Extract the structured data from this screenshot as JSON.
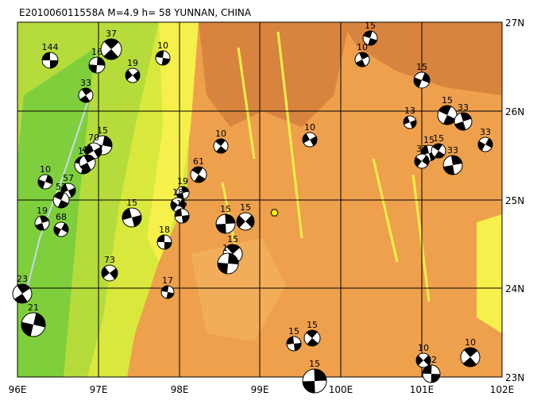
{
  "header": {
    "title": "E201006011558A  M=4.9  h= 58  YUNNAN, CHINA"
  },
  "x_labels": [
    "96E",
    "97E",
    "98E",
    "99E",
    "100E",
    "101E",
    "102E"
  ],
  "y_labels": [
    "27N",
    "26N",
    "25N",
    "24N",
    "23N"
  ],
  "events": [
    {
      "label": "144"
    },
    {
      "label": "37"
    },
    {
      "label": "16"
    },
    {
      "label": "19"
    },
    {
      "label": "10"
    },
    {
      "label": "33"
    },
    {
      "label": "15"
    },
    {
      "label": "70"
    },
    {
      "label": "16"
    },
    {
      "label": "48"
    },
    {
      "label": "10"
    },
    {
      "label": "57"
    },
    {
      "label": "57"
    },
    {
      "label": "19"
    },
    {
      "label": "68"
    },
    {
      "label": "15"
    },
    {
      "label": "61"
    },
    {
      "label": "19"
    },
    {
      "label": "18"
    },
    {
      "label": "15"
    },
    {
      "label": "10"
    },
    {
      "label": "15"
    },
    {
      "label": "15"
    },
    {
      "label": "18"
    },
    {
      "label": "15"
    },
    {
      "label": "14"
    },
    {
      "label": "73"
    },
    {
      "label": "17"
    },
    {
      "label": "23"
    },
    {
      "label": "21"
    },
    {
      "label": "10"
    },
    {
      "label": "15"
    },
    {
      "label": "10"
    },
    {
      "label": "15"
    },
    {
      "label": "13"
    },
    {
      "label": "15"
    },
    {
      "label": "33"
    },
    {
      "label": "33"
    },
    {
      "label": "15"
    },
    {
      "label": "15"
    },
    {
      "label": "33"
    },
    {
      "label": "33"
    },
    {
      "label": "15"
    },
    {
      "label": "15"
    },
    {
      "label": "15"
    },
    {
      "label": "10"
    },
    {
      "label": "12"
    },
    {
      "label": "10"
    }
  ]
}
